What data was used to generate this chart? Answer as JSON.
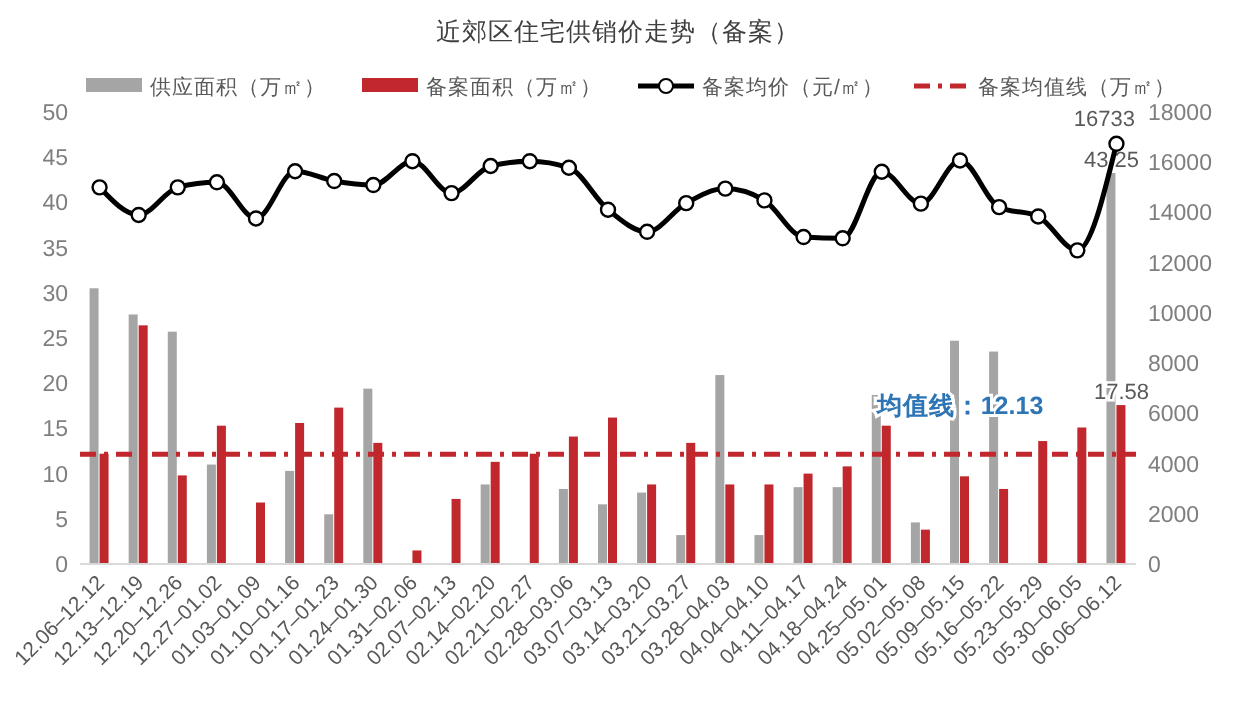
{
  "chart_data": {
    "type": "bar",
    "title": "近郊区住宅供销价走势（备案）",
    "categories": [
      "12.06–12.12",
      "12.13–12.19",
      "12.20–12.26",
      "12.27–01.02",
      "01.03–01.09",
      "01.10–01.16",
      "01.17–01.23",
      "01.24–01.30",
      "01.31–02.06",
      "02.07–02.13",
      "02.14–02.20",
      "02.21–02.27",
      "02.28–03.06",
      "03.07–03.13",
      "03.14–03.20",
      "03.21–03.27",
      "03.28–04.03",
      "04.04–04.10",
      "04.11–04.17",
      "04.18–04.24",
      "04.25–05.01",
      "05.02–05.08",
      "05.09–05.15",
      "05.16–05.22",
      "05.23–05.29",
      "05.30–06.05",
      "06.06–06.12"
    ],
    "series": [
      {
        "name": "供应面积（万㎡）",
        "color": "#a5a5a5",
        "values": [
          30.5,
          27.6,
          25.7,
          11,
          0,
          10.3,
          5.5,
          19.4,
          0,
          0,
          8.8,
          0,
          8.3,
          6.6,
          7.9,
          3.2,
          20.9,
          3.2,
          8.5,
          8.5,
          18.7,
          4.6,
          24.7,
          23.5,
          0,
          0,
          43.25
        ],
        "value_labels": [
          null,
          null,
          null,
          null,
          null,
          null,
          null,
          null,
          null,
          null,
          null,
          null,
          null,
          null,
          null,
          null,
          null,
          null,
          null,
          null,
          null,
          null,
          null,
          null,
          null,
          null,
          "43.25"
        ]
      },
      {
        "name": "备案面积（万㎡）",
        "color": "#c0282d",
        "values": [
          12.2,
          26.4,
          9.8,
          15.3,
          6.8,
          15.6,
          17.3,
          13.4,
          1.5,
          7.2,
          11.3,
          12.2,
          14.1,
          16.2,
          8.8,
          13.4,
          8.8,
          8.8,
          10,
          10.8,
          15.3,
          3.8,
          9.7,
          8.3,
          13.6,
          15.1,
          17.58
        ],
        "value_labels": [
          null,
          null,
          null,
          null,
          null,
          null,
          null,
          null,
          null,
          null,
          null,
          null,
          null,
          null,
          null,
          null,
          null,
          null,
          null,
          null,
          null,
          null,
          null,
          null,
          null,
          null,
          "17.58"
        ]
      },
      {
        "type": "line",
        "name": "备案均价（元/㎡）",
        "color": "#000000",
        "axis": "y2",
        "marker": "circle",
        "values": [
          15000,
          13900,
          15000,
          15200,
          13760,
          15640,
          15250,
          15090,
          16040,
          14770,
          15850,
          16040,
          15780,
          14110,
          13230,
          14370,
          14950,
          14480,
          13020,
          12970,
          15620,
          14350,
          16070,
          14210,
          13840,
          12490,
          16733
        ],
        "value_labels": [
          null,
          null,
          null,
          null,
          null,
          null,
          null,
          null,
          null,
          null,
          null,
          null,
          null,
          null,
          null,
          null,
          null,
          null,
          null,
          null,
          null,
          null,
          null,
          null,
          null,
          null,
          "16733"
        ]
      }
    ],
    "ylim": [
      0,
      50
    ],
    "yticks": [
      0,
      5,
      10,
      15,
      20,
      25,
      30,
      35,
      40,
      45,
      50
    ],
    "y2lim": [
      0,
      18000
    ],
    "y2ticks": [
      0,
      2000,
      4000,
      6000,
      8000,
      10000,
      12000,
      14000,
      16000,
      18000
    ],
    "ref_lines": [
      {
        "axis": "y",
        "value": 12.13,
        "label": "备案均值线（万㎡）",
        "color": "#c0282d",
        "line_style": "dashed"
      }
    ],
    "annotations": [
      {
        "text": "均值线：12.13",
        "x": "05.09–05.15",
        "y": 12.13
      }
    ],
    "legend": "top"
  }
}
